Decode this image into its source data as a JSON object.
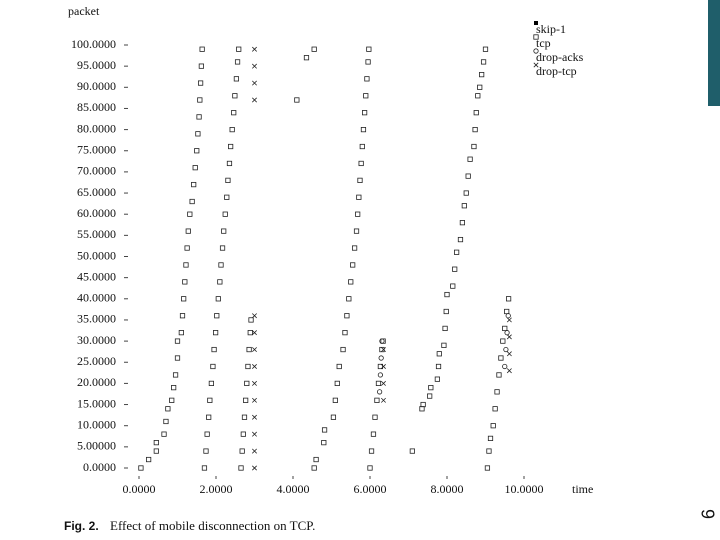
{
  "slide": {
    "page_number": "9"
  },
  "chart_data": {
    "type": "scatter",
    "caption_label": "Fig. 2.",
    "caption": "Effect of mobile disconnection on TCP.",
    "xlabel": "time",
    "ylabel": "packet",
    "xlim": [
      0,
      10
    ],
    "ylim": [
      0,
      100
    ],
    "xticks": [
      {
        "value": 0,
        "label": "0.0000"
      },
      {
        "value": 2,
        "label": "2.0000"
      },
      {
        "value": 4,
        "label": "4.0000"
      },
      {
        "value": 6,
        "label": "6.0000"
      },
      {
        "value": 8,
        "label": "8.0000"
      },
      {
        "value": 10,
        "label": "10.0000"
      }
    ],
    "yticks": [
      {
        "value": 0,
        "label": "0.0000"
      },
      {
        "value": 5,
        "label": "5.00000"
      },
      {
        "value": 10,
        "label": "10.0000"
      },
      {
        "value": 15,
        "label": "15.0000"
      },
      {
        "value": 20,
        "label": "20.0000"
      },
      {
        "value": 25,
        "label": "25.0000"
      },
      {
        "value": 30,
        "label": "30.0000"
      },
      {
        "value": 35,
        "label": "35.0000"
      },
      {
        "value": 40,
        "label": "40.0000"
      },
      {
        "value": 45,
        "label": "45.0000"
      },
      {
        "value": 50,
        "label": "50.0000"
      },
      {
        "value": 55,
        "label": "55.0000"
      },
      {
        "value": 60,
        "label": "60.0000"
      },
      {
        "value": 65,
        "label": "65.0000"
      },
      {
        "value": 70,
        "label": "70.0000"
      },
      {
        "value": 75,
        "label": "75.0000"
      },
      {
        "value": 80,
        "label": "80.0000"
      },
      {
        "value": 85,
        "label": "85.0000"
      },
      {
        "value": 90,
        "label": "90.0000"
      },
      {
        "value": 95,
        "label": "95.0000"
      },
      {
        "value": 100,
        "label": "100.0000"
      }
    ],
    "series": [
      {
        "name": "skip-1",
        "marker": "dot",
        "color": "#000000",
        "x": [],
        "values": []
      },
      {
        "name": "tcp",
        "marker": "square",
        "color": "#000000",
        "x": [
          0.05,
          0.25,
          0.45,
          0.45,
          0.65,
          0.7,
          0.75,
          0.85,
          0.9,
          0.95,
          1.0,
          1.0,
          1.1,
          1.13,
          1.16,
          1.19,
          1.22,
          1.25,
          1.28,
          1.32,
          1.38,
          1.42,
          1.46,
          1.5,
          1.53,
          1.56,
          1.58,
          1.6,
          1.62,
          1.64,
          1.7,
          1.74,
          1.77,
          1.81,
          1.84,
          1.88,
          1.92,
          1.95,
          1.99,
          2.02,
          2.06,
          2.1,
          2.13,
          2.17,
          2.2,
          2.24,
          2.28,
          2.31,
          2.35,
          2.38,
          2.42,
          2.46,
          2.49,
          2.53,
          2.56,
          2.59,
          2.65,
          2.68,
          2.71,
          2.74,
          2.77,
          2.8,
          2.83,
          2.86,
          2.89,
          2.91,
          4.1,
          4.35,
          4.55,
          4.55,
          4.6,
          4.8,
          4.82,
          5.05,
          5.1,
          5.15,
          5.2,
          5.3,
          5.35,
          5.4,
          5.45,
          5.5,
          5.55,
          5.6,
          5.65,
          5.68,
          5.71,
          5.74,
          5.77,
          5.8,
          5.83,
          5.86,
          5.89,
          5.92,
          5.95,
          5.97,
          6.0,
          6.04,
          6.09,
          6.13,
          6.18,
          6.22,
          6.27,
          6.31,
          6.34,
          7.1,
          7.35,
          7.38,
          7.55,
          7.58,
          7.75,
          7.78,
          7.8,
          7.92,
          7.95,
          7.98,
          8.0,
          8.15,
          8.2,
          8.25,
          8.35,
          8.4,
          8.45,
          8.5,
          8.55,
          8.6,
          8.7,
          8.73,
          8.76,
          8.8,
          8.85,
          8.9,
          8.95,
          9.0,
          9.05,
          9.09,
          9.13,
          9.2,
          9.25,
          9.3,
          9.35,
          9.4,
          9.45,
          9.5,
          9.55,
          9.6
        ],
        "values": [
          0,
          2,
          4,
          6,
          8,
          11,
          14,
          16,
          19,
          22,
          26,
          30,
          32,
          36,
          40,
          44,
          48,
          52,
          56,
          60,
          63,
          67,
          71,
          75,
          79,
          83,
          87,
          91,
          95,
          99,
          0,
          4,
          8,
          12,
          16,
          20,
          24,
          28,
          32,
          36,
          40,
          44,
          48,
          52,
          56,
          60,
          64,
          68,
          72,
          76,
          80,
          84,
          88,
          92,
          96,
          99,
          0,
          4,
          8,
          12,
          16,
          20,
          24,
          28,
          32,
          35,
          87,
          97,
          99,
          0,
          2,
          6,
          9,
          12,
          16,
          20,
          24,
          28,
          32,
          36,
          40,
          44,
          48,
          52,
          56,
          60,
          64,
          68,
          72,
          76,
          80,
          84,
          88,
          92,
          96,
          99,
          0,
          4,
          8,
          12,
          16,
          20,
          24,
          28,
          30,
          4,
          14,
          15,
          17,
          19,
          21,
          24,
          27,
          29,
          33,
          37,
          41,
          43,
          47,
          51,
          54,
          58,
          62,
          65,
          69,
          73,
          76,
          80,
          84,
          88,
          90,
          93,
          96,
          99,
          0,
          4,
          7,
          10,
          14,
          18,
          22,
          26,
          30,
          33,
          37,
          40
        ]
      },
      {
        "name": "drop-acks",
        "marker": "circle",
        "color": "#000000",
        "x": [
          6.25,
          6.27,
          6.29,
          6.31,
          9.5,
          9.53,
          9.56,
          9.59
        ],
        "values": [
          18,
          22,
          26,
          30,
          24,
          28,
          32,
          36
        ]
      },
      {
        "name": "drop-tcp",
        "marker": "x",
        "color": "#000000",
        "x": [
          3.0,
          3.0,
          3.0,
          3.0,
          3.0,
          3.0,
          3.0,
          3.0,
          3.0,
          3.0,
          3.0,
          3.0,
          3.0,
          3.0,
          6.35,
          6.35,
          6.35,
          6.35,
          9.62,
          9.62,
          9.62,
          9.62
        ],
        "values": [
          0,
          4,
          8,
          12,
          16,
          20,
          24,
          28,
          32,
          36,
          87,
          91,
          95,
          99,
          16,
          20,
          24,
          28,
          23,
          27,
          31,
          35
        ]
      }
    ]
  }
}
